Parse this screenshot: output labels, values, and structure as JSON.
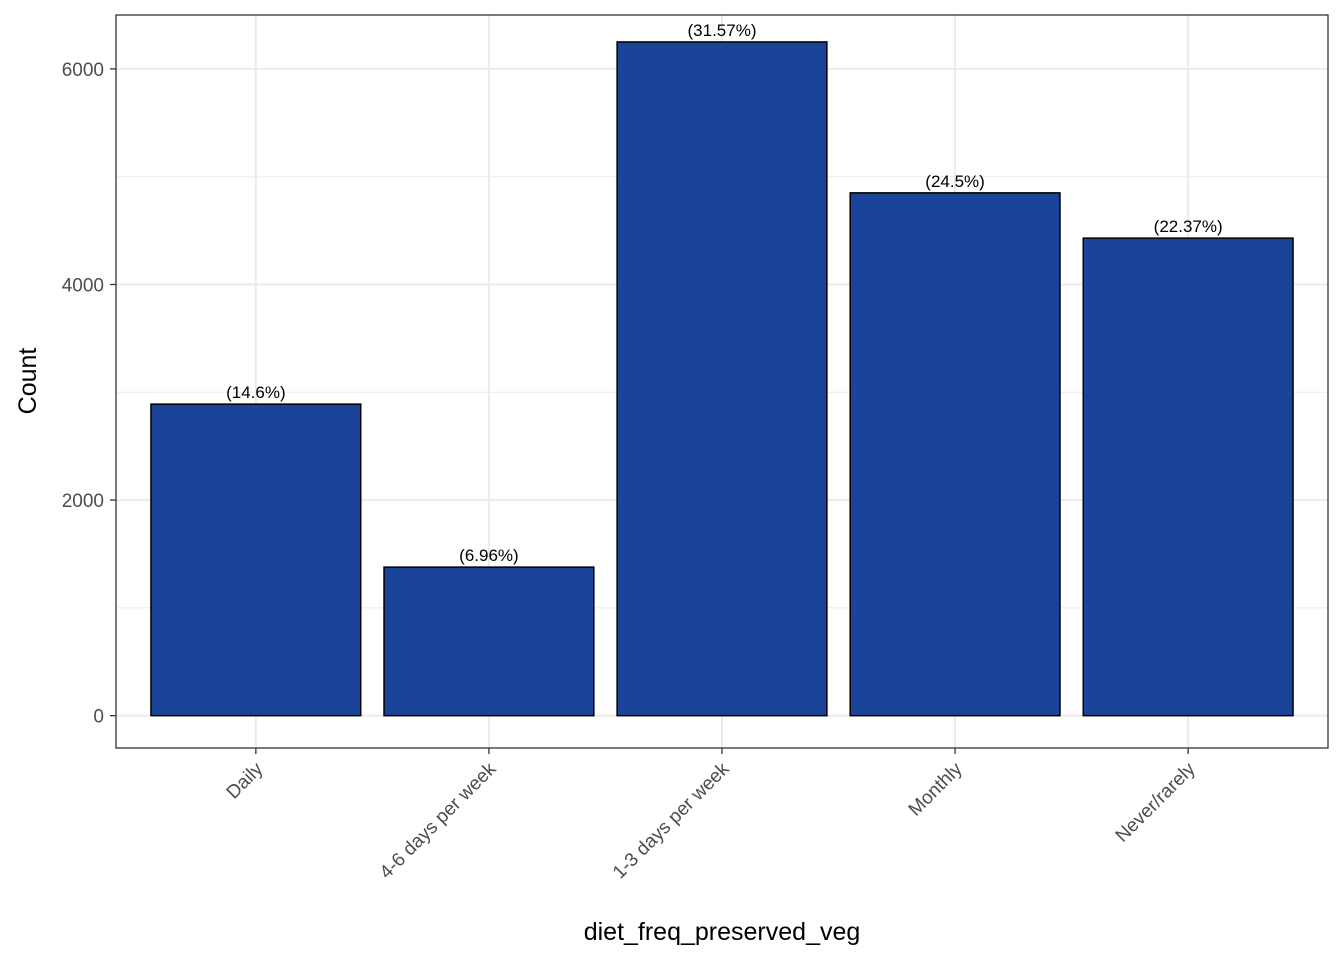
{
  "chart_data": {
    "type": "bar",
    "title": "",
    "xlabel": "diet_freq_preserved_veg",
    "ylabel": "Count",
    "categories": [
      "Daily",
      "4-6 days per week",
      "1-3 days per week",
      "Monthly",
      "Never/rarely"
    ],
    "values": [
      2890,
      1378,
      6250,
      4850,
      4430
    ],
    "data_labels": [
      "(14.6%)",
      "(6.96%)",
      "(31.57%)",
      "(24.5%)",
      "(22.37%)"
    ],
    "ylim": [
      -300,
      6500
    ],
    "yticks": [
      0,
      2000,
      4000,
      6000
    ],
    "ytick_labels": [
      "0",
      "2000",
      "4000",
      "6000"
    ],
    "x_tick_rotation": -45,
    "grid": true,
    "bar_color": "#1a439a",
    "bar_edge_color": "#000000"
  }
}
